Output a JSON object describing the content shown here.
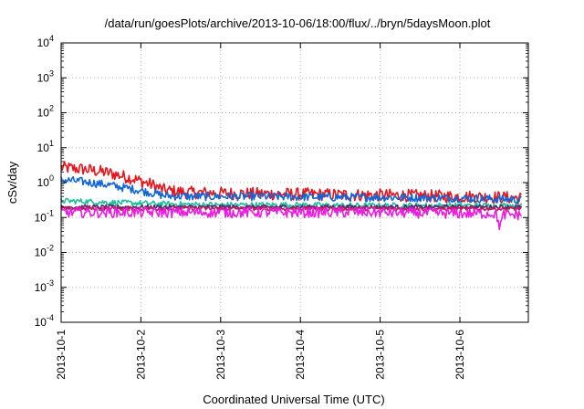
{
  "chart_data": {
    "type": "line",
    "title": "/data/run/goesPlots/archive/2013-10-06/18:00/flux/../bryn/5daysMoon.plot",
    "xlabel": "Coordinated Universal Time (UTC)",
    "ylabel": "cSv/day",
    "yscale": "log",
    "ylim": [
      0.0001,
      10000
    ],
    "xlim": [
      0,
      5.77
    ],
    "grid": true,
    "x_unit": "days from 2013-10-01",
    "x_tick_labels": [
      "2013-10-1",
      "2013-10-2",
      "2013-10-3",
      "2013-10-4",
      "2013-10-5",
      "2013-10-6"
    ],
    "y_tick_labels": [
      {
        "base": "10",
        "exp": "4"
      },
      {
        "base": "10",
        "exp": "3"
      },
      {
        "base": "10",
        "exp": "2"
      },
      {
        "base": "10",
        "exp": "1"
      },
      {
        "base": "10",
        "exp": "0"
      },
      {
        "base": "10",
        "exp": "-1"
      },
      {
        "base": "10",
        "exp": "-2"
      },
      {
        "base": "10",
        "exp": "-3"
      },
      {
        "base": "10",
        "exp": "-4"
      }
    ],
    "series": [
      {
        "color": "#e8141b",
        "x": [
          0,
          0.3,
          0.6,
          0.9,
          1.15,
          1.3,
          1.6,
          2.0,
          2.5,
          3.0,
          3.5,
          4.0,
          4.5,
          5.0,
          5.5,
          5.77
        ],
        "values": [
          2.7,
          2.4,
          1.9,
          1.3,
          0.85,
          0.6,
          0.52,
          0.5,
          0.48,
          0.47,
          0.45,
          0.44,
          0.42,
          0.4,
          0.38,
          0.36
        ]
      },
      {
        "color": "#1265d6",
        "x": [
          0,
          0.3,
          0.6,
          0.9,
          1.15,
          1.3,
          1.6,
          2.0,
          2.5,
          3.0,
          3.5,
          4.0,
          4.5,
          5.0,
          5.5,
          5.77
        ],
        "values": [
          1.2,
          1.05,
          0.85,
          0.65,
          0.5,
          0.42,
          0.4,
          0.4,
          0.4,
          0.39,
          0.38,
          0.38,
          0.37,
          0.36,
          0.34,
          0.32
        ]
      },
      {
        "color": "#1dbf9c",
        "x": [
          0,
          0.3,
          0.6,
          0.9,
          1.15,
          1.5,
          2.0,
          2.5,
          3.0,
          3.5,
          4.0,
          4.5,
          5.0,
          5.5,
          5.77
        ],
        "values": [
          0.3,
          0.29,
          0.27,
          0.26,
          0.25,
          0.24,
          0.23,
          0.23,
          0.23,
          0.22,
          0.22,
          0.22,
          0.22,
          0.22,
          0.22
        ]
      },
      {
        "color": "#4b2a6e",
        "x": [
          0,
          1,
          2,
          3,
          4,
          5,
          5.77
        ],
        "values": [
          0.2,
          0.2,
          0.2,
          0.2,
          0.2,
          0.2,
          0.2
        ]
      },
      {
        "color": "#c2185b",
        "x": [
          0,
          1,
          2,
          3,
          4,
          5,
          5.77
        ],
        "values": [
          0.18,
          0.18,
          0.18,
          0.18,
          0.18,
          0.18,
          0.18
        ]
      },
      {
        "color": "#e81ee0",
        "x": [
          0,
          1,
          2,
          3,
          4,
          5,
          5.45,
          5.5,
          5.55,
          5.77
        ],
        "values": [
          0.14,
          0.14,
          0.14,
          0.14,
          0.14,
          0.13,
          0.13,
          0.055,
          0.12,
          0.12
        ]
      }
    ],
    "series_noise": [
      0.18,
      0.12,
      0.08,
      0.06,
      0.06,
      0.15
    ]
  }
}
